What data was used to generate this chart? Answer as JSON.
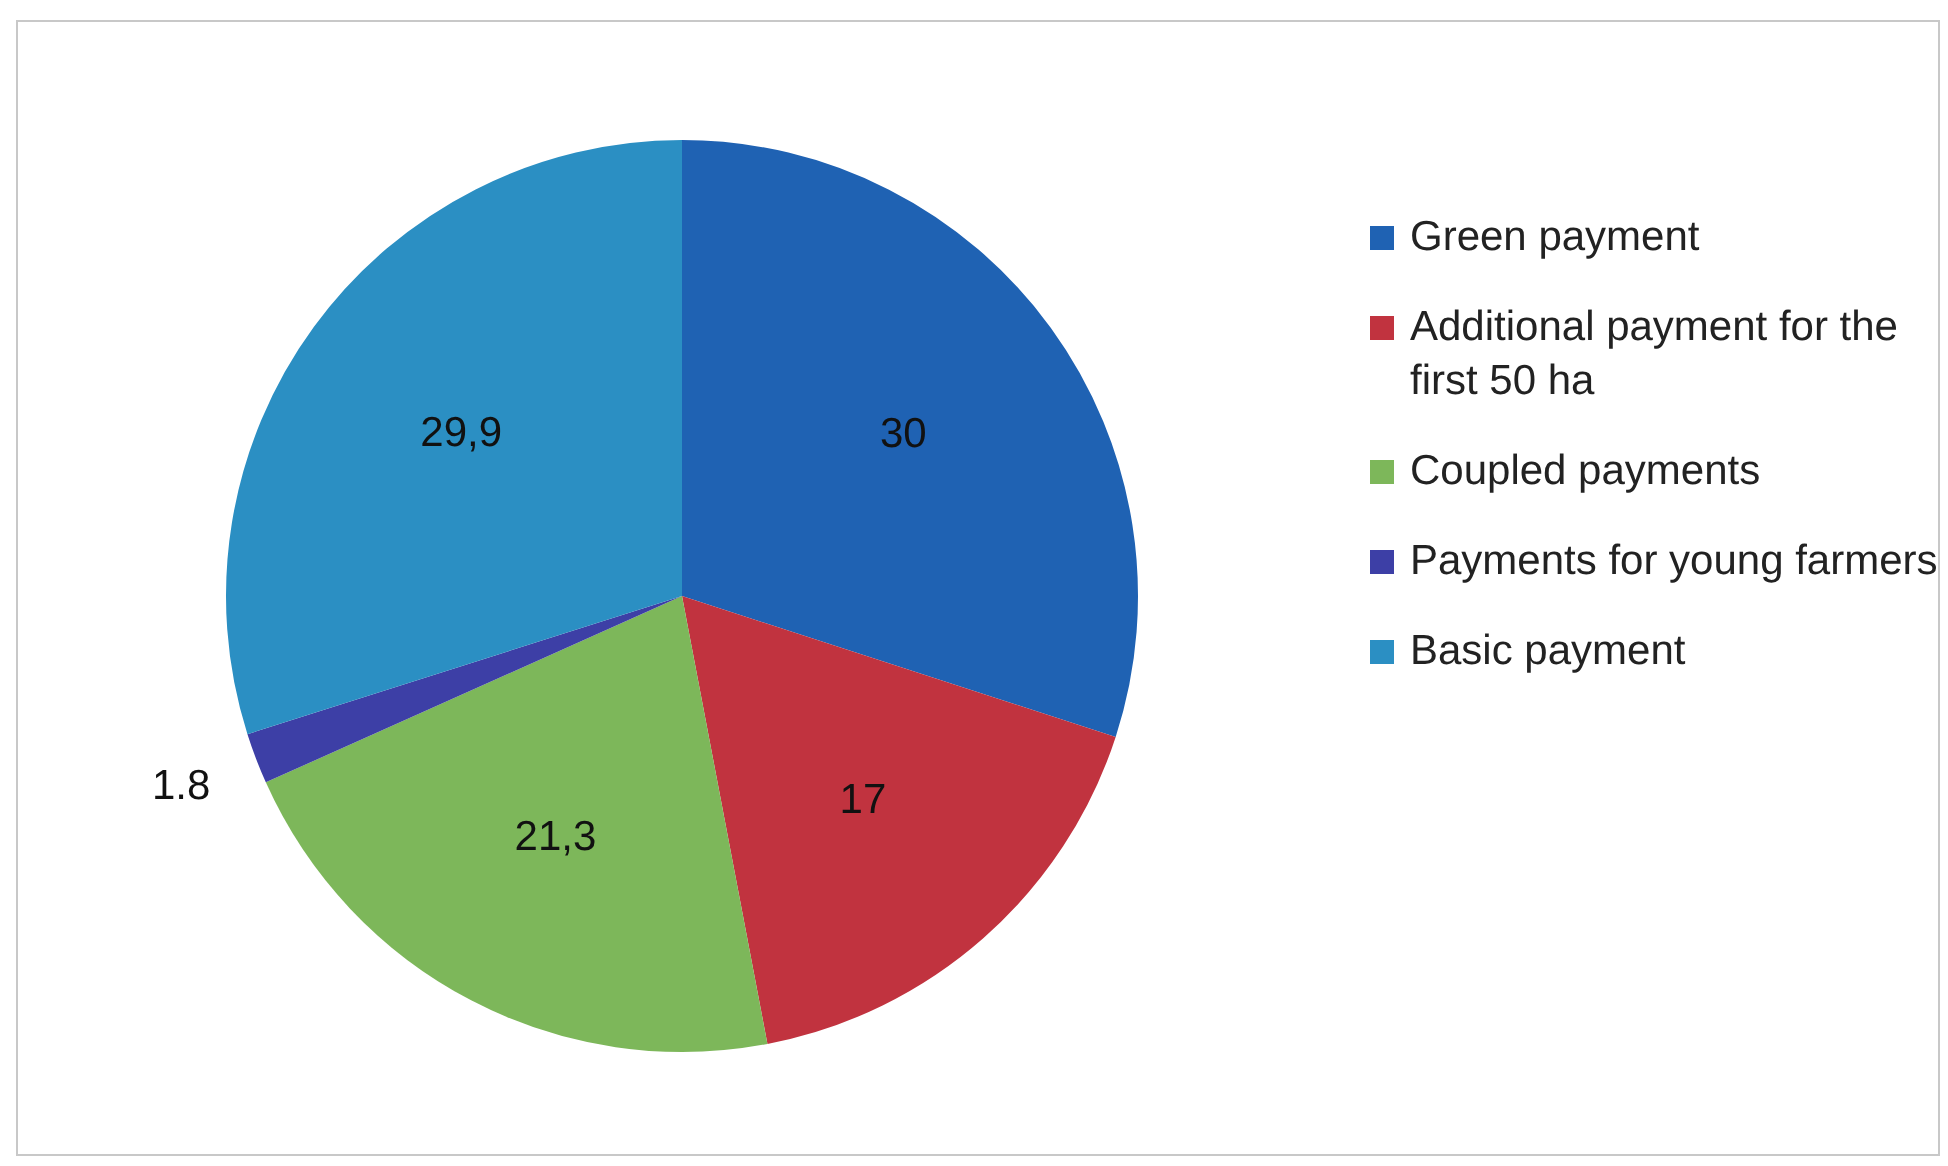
{
  "chart_data": {
    "type": "pie",
    "categories": [
      "Green payment",
      "Additional payment for the first 50 ha",
      "Coupled payments",
      "Payments for young farmers",
      "Basic payment"
    ],
    "values": [
      30,
      17,
      21.3,
      1.8,
      29.9
    ],
    "value_labels": [
      "30",
      "17",
      "21,3",
      "1.8",
      "29,9"
    ],
    "colors": [
      "#1f62b3",
      "#c1333f",
      "#7db75a",
      "#3d3fa6",
      "#2b8fc3"
    ],
    "legend": "right"
  }
}
